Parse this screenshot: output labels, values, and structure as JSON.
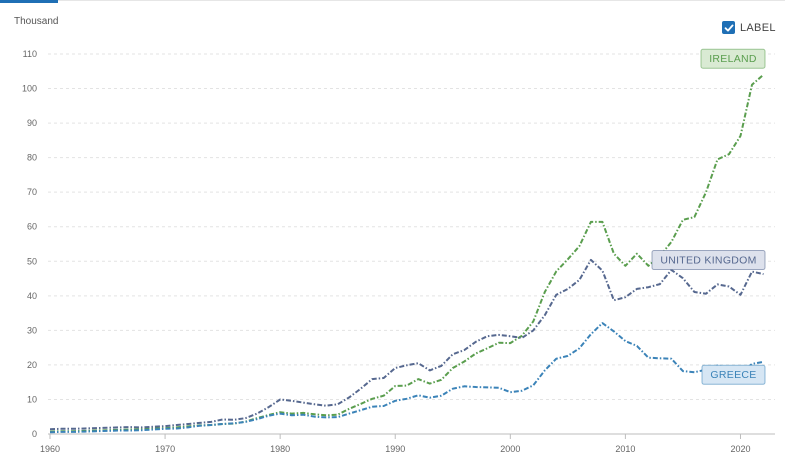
{
  "header": {
    "y_unit": "Thousand",
    "label_toggle": "LABEL",
    "label_toggle_checked": true,
    "accent_color": "#1f6fb5"
  },
  "chart_data": {
    "type": "line",
    "ylabel": "Thousand",
    "xlim": [
      1960,
      2023
    ],
    "ylim": [
      0,
      110
    ],
    "x_ticks": [
      1960,
      1970,
      1980,
      1990,
      2000,
      2010,
      2020
    ],
    "y_ticks": [
      0,
      10,
      20,
      30,
      40,
      50,
      60,
      70,
      80,
      90,
      100,
      110
    ],
    "grid": true,
    "series": [
      {
        "name": "IRELAND",
        "color": "#5a9e4e",
        "label_bg": "#d9ead3",
        "x": [
          1960,
          1961,
          1962,
          1963,
          1964,
          1965,
          1966,
          1967,
          1968,
          1969,
          1970,
          1971,
          1972,
          1973,
          1974,
          1975,
          1976,
          1977,
          1978,
          1979,
          1980,
          1981,
          1982,
          1983,
          1984,
          1985,
          1986,
          1987,
          1988,
          1989,
          1990,
          1991,
          1992,
          1993,
          1994,
          1995,
          1996,
          1997,
          1998,
          1999,
          2000,
          2001,
          2002,
          2003,
          2004,
          2005,
          2006,
          2007,
          2008,
          2009,
          2010,
          2011,
          2012,
          2013,
          2014,
          2015,
          2016,
          2017,
          2018,
          2019,
          2020,
          2021,
          2022
        ],
        "values": [
          0.7,
          0.8,
          0.8,
          0.9,
          1.0,
          1.1,
          1.2,
          1.3,
          1.4,
          1.6,
          1.7,
          1.9,
          2.2,
          2.5,
          2.6,
          2.9,
          3.0,
          3.6,
          4.6,
          5.5,
          6.3,
          5.9,
          6.1,
          5.7,
          5.4,
          5.6,
          7.3,
          8.7,
          10.2,
          11.1,
          13.9,
          14.0,
          15.9,
          14.6,
          15.7,
          19.1,
          21.0,
          23.3,
          24.8,
          26.4,
          26.3,
          28.4,
          32.6,
          41.1,
          47.1,
          50.6,
          54.4,
          61.4,
          61.4,
          52.2,
          48.7,
          52.2,
          48.7,
          51.5,
          55.6,
          62.0,
          62.8,
          70.0,
          79.5,
          81.0,
          86.3,
          101.1,
          104.0
        ]
      },
      {
        "name": "UNITED KINGDOM",
        "color": "#56688f",
        "label_bg": "#dde1ec",
        "x": [
          1960,
          1961,
          1962,
          1963,
          1964,
          1965,
          1966,
          1967,
          1968,
          1969,
          1970,
          1971,
          1972,
          1973,
          1974,
          1975,
          1976,
          1977,
          1978,
          1979,
          1980,
          1981,
          1982,
          1983,
          1984,
          1985,
          1986,
          1987,
          1988,
          1989,
          1990,
          1991,
          1992,
          1993,
          1994,
          1995,
          1996,
          1997,
          1998,
          1999,
          2000,
          2001,
          2002,
          2003,
          2004,
          2005,
          2006,
          2007,
          2008,
          2009,
          2010,
          2011,
          2012,
          2013,
          2014,
          2015,
          2016,
          2017,
          2018,
          2019,
          2020,
          2021,
          2022
        ],
        "values": [
          1.4,
          1.5,
          1.5,
          1.6,
          1.7,
          1.8,
          1.9,
          2.0,
          1.9,
          2.1,
          2.3,
          2.6,
          2.9,
          3.2,
          3.5,
          4.2,
          4.1,
          4.6,
          5.9,
          7.8,
          10.0,
          9.6,
          9.1,
          8.6,
          8.2,
          8.6,
          10.6,
          13.1,
          15.9,
          16.2,
          19.1,
          19.9,
          20.5,
          18.4,
          19.7,
          23.1,
          24.3,
          26.7,
          28.3,
          28.7,
          28.3,
          27.8,
          30.0,
          34.4,
          40.3,
          42.0,
          44.6,
          50.4,
          47.3,
          38.7,
          39.6,
          42.0,
          42.5,
          43.4,
          47.5,
          45.1,
          41.1,
          40.6,
          43.3,
          42.7,
          40.3,
          47.0,
          46.3
        ]
      },
      {
        "name": "GREECE",
        "color": "#3b83b8",
        "label_bg": "#d6e6f4",
        "x": [
          1960,
          1961,
          1962,
          1963,
          1964,
          1965,
          1966,
          1967,
          1968,
          1969,
          1970,
          1971,
          1972,
          1973,
          1974,
          1975,
          1976,
          1977,
          1978,
          1979,
          1980,
          1981,
          1982,
          1983,
          1984,
          1985,
          1986,
          1987,
          1988,
          1989,
          1990,
          1991,
          1992,
          1993,
          1994,
          1995,
          1996,
          1997,
          1998,
          1999,
          2000,
          2001,
          2002,
          2003,
          2004,
          2005,
          2006,
          2007,
          2008,
          2009,
          2010,
          2011,
          2012,
          2013,
          2014,
          2015,
          2016,
          2017,
          2018,
          2019,
          2020,
          2021,
          2022
        ],
        "values": [
          0.5,
          0.6,
          0.6,
          0.7,
          0.8,
          0.9,
          1.0,
          1.0,
          1.1,
          1.3,
          1.5,
          1.6,
          1.9,
          2.4,
          2.6,
          2.9,
          3.1,
          3.5,
          4.3,
          5.3,
          5.9,
          5.4,
          5.6,
          5.0,
          4.8,
          4.9,
          5.9,
          6.9,
          7.9,
          8.1,
          9.6,
          10.2,
          11.2,
          10.5,
          11.1,
          13.1,
          13.8,
          13.6,
          13.5,
          13.4,
          12.1,
          12.5,
          14.1,
          18.4,
          21.8,
          22.6,
          24.8,
          28.9,
          32.1,
          29.7,
          26.9,
          25.5,
          22.1,
          21.9,
          21.8,
          18.2,
          17.9,
          18.6,
          19.8,
          19.2,
          17.6,
          20.3,
          20.9
        ]
      }
    ]
  }
}
